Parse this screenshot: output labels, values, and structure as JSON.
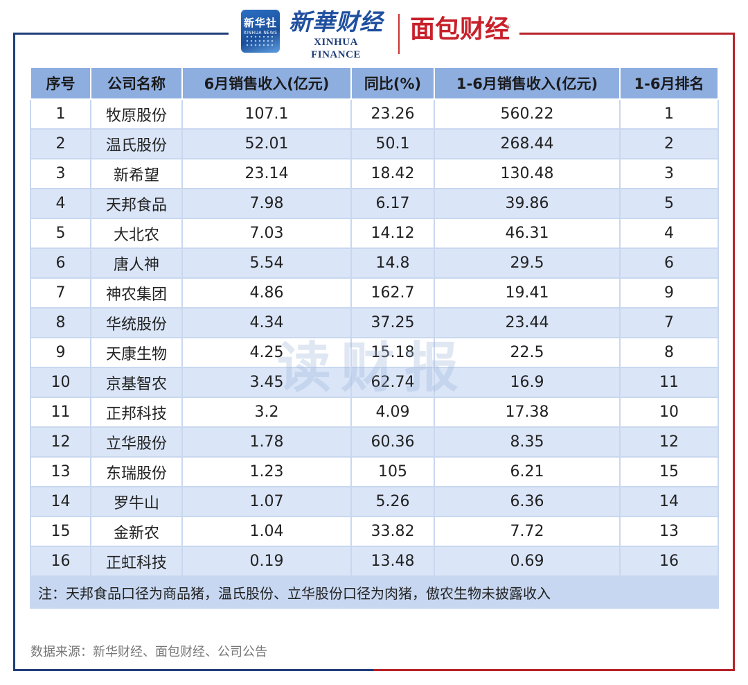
{
  "header": {
    "xinhua_badge_cn": "新华社",
    "xinhua_badge_en": "XINHUA NEWS",
    "xinhua_finance_cn": "新華财经",
    "xinhua_finance_en": "XINHUA FINANCE",
    "mianbao_cn": "面包财经",
    "mianbao_reg": "®"
  },
  "watermark": "读财报",
  "source": "数据来源：新华财经、面包财经、公司公告",
  "colors": {
    "header_bg": "#8eaee0",
    "stripe": "#dae5f7",
    "note_bg": "#c7d7f1",
    "brand_blue": "#1f3d7a",
    "brand_red": "#b8222a"
  },
  "chart_data": {
    "type": "table",
    "columns": [
      "序号",
      "公司名称",
      "6月销售收入(亿元)",
      "同比(%)",
      "1-6月销售收入(亿元)",
      "1-6月排名"
    ],
    "rows": [
      [
        "1",
        "牧原股份",
        "107.1",
        "23.26",
        "560.22",
        "1"
      ],
      [
        "2",
        "温氏股份",
        "52.01",
        "50.1",
        "268.44",
        "2"
      ],
      [
        "3",
        "新希望",
        "23.14",
        "18.42",
        "130.48",
        "3"
      ],
      [
        "4",
        "天邦食品",
        "7.98",
        "6.17",
        "39.86",
        "5"
      ],
      [
        "5",
        "大北农",
        "7.03",
        "14.12",
        "46.31",
        "4"
      ],
      [
        "6",
        "唐人神",
        "5.54",
        "14.8",
        "29.5",
        "6"
      ],
      [
        "7",
        "神农集团",
        "4.86",
        "162.7",
        "19.41",
        "9"
      ],
      [
        "8",
        "华统股份",
        "4.34",
        "37.25",
        "23.44",
        "7"
      ],
      [
        "9",
        "天康生物",
        "4.25",
        "15.18",
        "22.5",
        "8"
      ],
      [
        "10",
        "京基智农",
        "3.45",
        "62.74",
        "16.9",
        "11"
      ],
      [
        "11",
        "正邦科技",
        "3.2",
        "4.09",
        "17.38",
        "10"
      ],
      [
        "12",
        "立华股份",
        "1.78",
        "60.36",
        "8.35",
        "12"
      ],
      [
        "13",
        "东瑞股份",
        "1.23",
        "105",
        "6.21",
        "15"
      ],
      [
        "14",
        "罗牛山",
        "1.07",
        "5.26",
        "6.36",
        "14"
      ],
      [
        "15",
        "金新农",
        "1.04",
        "33.82",
        "7.72",
        "13"
      ],
      [
        "16",
        "正虹科技",
        "0.19",
        "13.48",
        "0.69",
        "16"
      ]
    ],
    "note": "注：天邦食品口径为商品猪，温氏股份、立华股份口径为肉猪，傲农生物未披露收入"
  }
}
